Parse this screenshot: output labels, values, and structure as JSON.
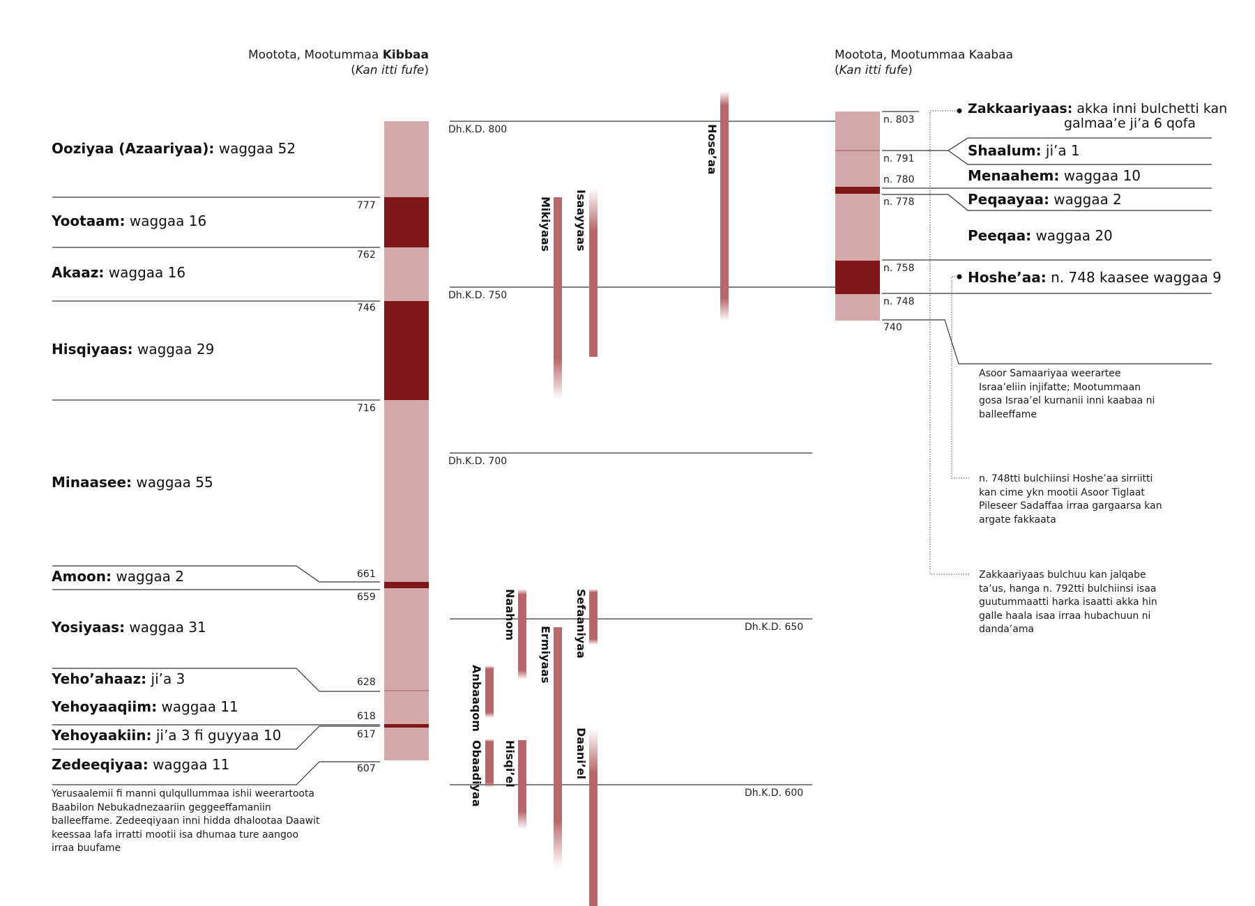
{
  "header": {
    "south": {
      "line1": "Mootota, Mootummaa ",
      "line1_bold": "Kibbaa",
      "line2": "Kan itti fufe"
    },
    "north": {
      "line1": "Mootota, Mootummaa Kaabaa",
      "line2": "Kan itti fufe"
    }
  },
  "colors": {
    "light": "#d2a8a8",
    "dark": "#7f1718",
    "prophet": "#b7676c",
    "line": "#333333"
  },
  "south_kings": [
    {
      "name": "Ooziyaa (Azaariyaa):",
      "reign": " waggaa 52"
    },
    {
      "name": "Yootaam:",
      "reign": " waggaa 16"
    },
    {
      "name": "Akaaz:",
      "reign": " waggaa 16"
    },
    {
      "name": "Hisqiyaas:",
      "reign": " waggaa 29"
    },
    {
      "name": "Minaasee:",
      "reign": " waggaa 55"
    },
    {
      "name": "Amoon:",
      "reign": " waggaa 2"
    },
    {
      "name": "Yosiyaas:",
      "reign": " waggaa 31"
    },
    {
      "name": "Yeho’ahaaz:",
      "reign": " ji’a 3"
    },
    {
      "name": "Yehoyaaqiim:",
      "reign": " waggaa 11"
    },
    {
      "name": "Yehoyaakiin:",
      "reign": " ji’a 3 fi guyyaa 10"
    },
    {
      "name": "Zedeeqiyaa:",
      "reign": " waggaa 11"
    }
  ],
  "south_years": [
    "777",
    "762",
    "746",
    "716",
    "661",
    "659",
    "628",
    "618",
    "617",
    "607"
  ],
  "south_note": "Yerusaalemii fi manni qulqullummaa ishii weerartoota Baabilon Nebukadnezaariin geggeeffamaniin balleeffame. Zedeeqiyaan inni hidda dhalootaa Daawit keessaa lafa irratti mootii isa dhumaa ture aangoo irraa buufame",
  "eras": [
    "Dh.K.D. 800",
    "Dh.K.D. 750",
    "Dh.K.D. 700",
    "Dh.K.D. 650",
    "Dh.K.D. 600"
  ],
  "prophets": [
    "Hose’aa",
    "Isaayyaas",
    "Mikiyaas",
    "Naahom",
    "Sefaaniyaa",
    "Ermiyaas",
    "Anbaaqom",
    "Obaadiyaa",
    "Hisqi’el",
    "Daani’el"
  ],
  "north_years": [
    "n. 803",
    "n. 791",
    "n. 780",
    "n. 778",
    "n. 758",
    "n. 748",
    "740"
  ],
  "north_kings": [
    {
      "name": "Zakkaariyaas:",
      "reign": " akka inni bulchetti kan",
      "reign2": "galmaa’e ji’a 6 qofa"
    },
    {
      "name": "Shaalum:",
      "reign": " ji’a 1"
    },
    {
      "name": "Menaahem:",
      "reign": " waggaa 10"
    },
    {
      "name": "Peqaayaa:",
      "reign": " waggaa 2"
    },
    {
      "name": "Peeqaa:",
      "reign": " waggaa 20"
    },
    {
      "name": "Hoshe’aa:",
      "reign": " n. 748 kaasee waggaa 9"
    }
  ],
  "north_notes": [
    "Asoor Samaariyaa weerartee Israa’eliin injifatte; Mootummaan gosa Israa’el kurnanii inni kaabaa ni balleeffame",
    "n. 748tti bulchiinsi Hoshe’aa sirriitti kan cime ykn mootii Asoor Tiglaat Pileseer Sadaffaa irraa gargaarsa kan argate fakkaata",
    "Zakkaariyaas bulchuu kan jalqabe ta’us, hanga n. 792tti bulchiinsi isaa guutummaatti harka isaatti akka hin galle haala isaa irraa hubachuun ni danda’ama"
  ]
}
